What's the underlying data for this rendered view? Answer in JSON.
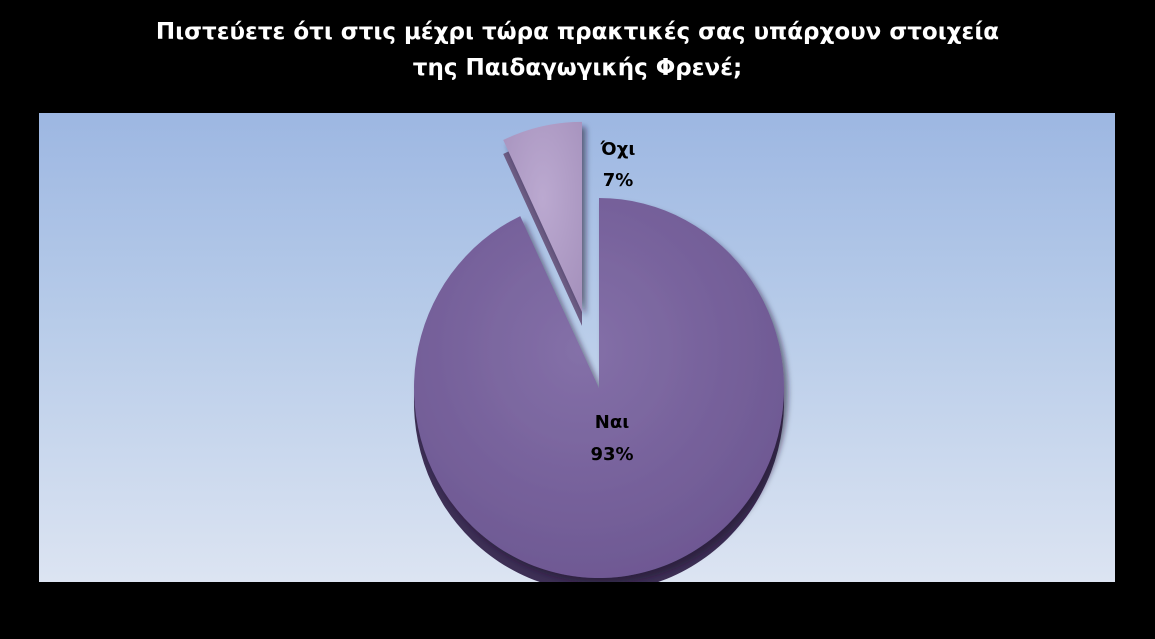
{
  "chart_data": {
    "type": "pie",
    "title_lines": [
      "Πιστεύετε ότι στις μέχρι τώρα πρακτικές σας υπάρχουν στοιχεία",
      "της Παιδαγωγικής Φρενέ;"
    ],
    "slices": [
      {
        "label": "Ναι",
        "value": 93,
        "value_label": "93%",
        "color": "#77609a",
        "exploded": false
      },
      {
        "label": "Όχι",
        "value": 7,
        "value_label": "7%",
        "color": "#ae9cc4",
        "exploded": true
      }
    ],
    "style": "3d-exploded",
    "legend": "none",
    "background": {
      "outer": "#000000",
      "plot_top": "#9db7e2",
      "plot_bottom": "#dce4f2"
    }
  }
}
